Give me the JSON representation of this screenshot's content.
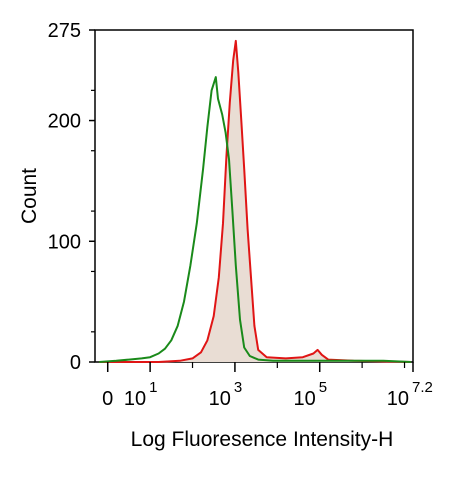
{
  "chart_data": {
    "type": "line",
    "title": "",
    "xlabel": "Log Fluoresence Intensity-H",
    "ylabel": "Count",
    "xscale": "log",
    "xlim": [
      -0.3,
      7.2
    ],
    "ylim": [
      0,
      275
    ],
    "grid": false,
    "legend": "none",
    "x_ticks": [
      {
        "base": "0",
        "exp": ""
      },
      {
        "base": "10",
        "exp": "1"
      },
      {
        "base": "10",
        "exp": "3"
      },
      {
        "base": "10",
        "exp": "5"
      },
      {
        "base": "10",
        "exp": "7.2"
      }
    ],
    "y_ticks": [
      "0",
      "100",
      "200",
      "275"
    ],
    "series": [
      {
        "color": "#1a8a1a",
        "fill": "none",
        "points": [
          [
            -0.2,
            0
          ],
          [
            0.2,
            1
          ],
          [
            0.5,
            2
          ],
          [
            0.8,
            3
          ],
          [
            1.0,
            4
          ],
          [
            1.2,
            7
          ],
          [
            1.35,
            11
          ],
          [
            1.5,
            18
          ],
          [
            1.65,
            30
          ],
          [
            1.8,
            50
          ],
          [
            1.95,
            80
          ],
          [
            2.1,
            115
          ],
          [
            2.25,
            160
          ],
          [
            2.35,
            195
          ],
          [
            2.45,
            225
          ],
          [
            2.55,
            236
          ],
          [
            2.6,
            218
          ],
          [
            2.7,
            205
          ],
          [
            2.78,
            190
          ],
          [
            2.86,
            168
          ],
          [
            2.94,
            125
          ],
          [
            3.02,
            80
          ],
          [
            3.12,
            35
          ],
          [
            3.22,
            12
          ],
          [
            3.35,
            5
          ],
          [
            3.55,
            2
          ],
          [
            3.9,
            1
          ],
          [
            4.5,
            1
          ],
          [
            5.5,
            1
          ],
          [
            6.5,
            1
          ],
          [
            7.15,
            0
          ]
        ]
      },
      {
        "color": "#e01515",
        "fill": "#e9ddd4",
        "points": [
          [
            -0.2,
            0
          ],
          [
            1.2,
            0
          ],
          [
            1.7,
            1
          ],
          [
            2.0,
            3
          ],
          [
            2.2,
            8
          ],
          [
            2.35,
            18
          ],
          [
            2.5,
            38
          ],
          [
            2.62,
            70
          ],
          [
            2.72,
            115
          ],
          [
            2.8,
            170
          ],
          [
            2.88,
            215
          ],
          [
            2.96,
            250
          ],
          [
            3.02,
            266
          ],
          [
            3.08,
            240
          ],
          [
            3.15,
            200
          ],
          [
            3.22,
            160
          ],
          [
            3.3,
            110
          ],
          [
            3.38,
            70
          ],
          [
            3.46,
            30
          ],
          [
            3.55,
            10
          ],
          [
            3.75,
            4
          ],
          [
            4.2,
            3
          ],
          [
            4.6,
            4
          ],
          [
            4.85,
            7
          ],
          [
            4.95,
            10
          ],
          [
            5.05,
            6
          ],
          [
            5.2,
            2
          ],
          [
            5.8,
            1
          ],
          [
            7.15,
            0
          ]
        ]
      }
    ]
  }
}
